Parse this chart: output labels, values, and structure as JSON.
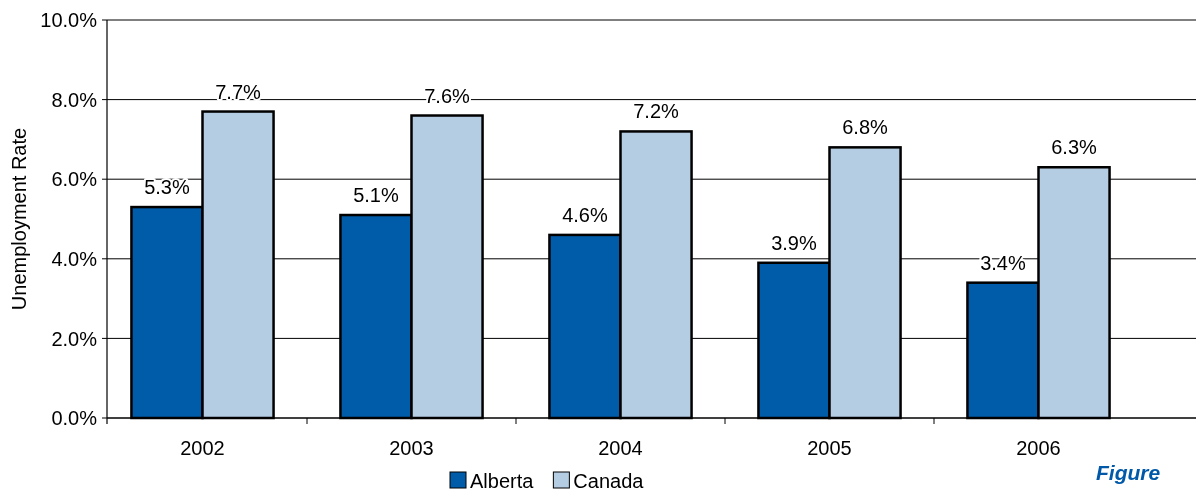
{
  "chart_data": {
    "type": "bar",
    "ylabel": "Unemployment Rate",
    "categories": [
      "2002",
      "2003",
      "2004",
      "2005",
      "2006"
    ],
    "series": [
      {
        "name": "Alberta",
        "color": "#005ca9",
        "values": [
          5.3,
          5.1,
          4.6,
          3.9,
          3.4
        ],
        "value_labels": [
          "5.3%",
          "5.1%",
          "4.6%",
          "3.9%",
          "3.4%"
        ]
      },
      {
        "name": "Canada",
        "color": "#b5cde3",
        "values": [
          7.7,
          7.6,
          7.2,
          6.8,
          6.3
        ],
        "value_labels": [
          "7.7%",
          "7.6%",
          "7.2%",
          "6.8%",
          "6.3%"
        ]
      }
    ],
    "ylim": [
      0,
      10
    ],
    "yticks": [
      {
        "value": 0,
        "label": "0.0%"
      },
      {
        "value": 2,
        "label": "2.0%"
      },
      {
        "value": 4,
        "label": "4.0%"
      },
      {
        "value": 6,
        "label": "6.0%"
      },
      {
        "value": 8,
        "label": "8.0%"
      },
      {
        "value": 10,
        "label": "10.0%"
      }
    ],
    "grid": "y",
    "legend": "bottom",
    "annotations": [
      "Figure"
    ]
  }
}
